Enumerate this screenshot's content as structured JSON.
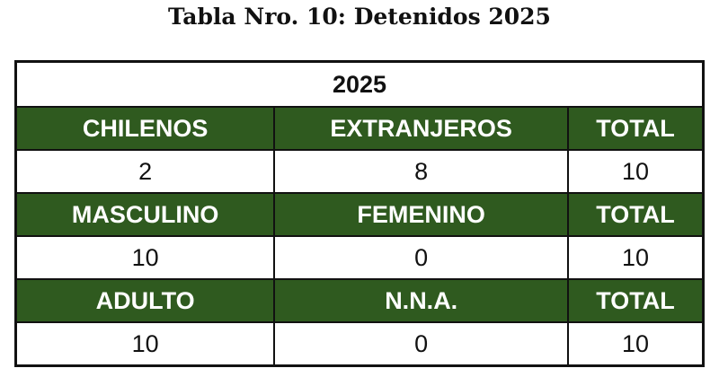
{
  "title": "Tabla Nro. 10: Detenidos 2025",
  "year": "2025",
  "header_color": "#2f5a1f",
  "sections": [
    {
      "headers": [
        "CHILENOS",
        "EXTRANJEROS",
        "TOTAL"
      ],
      "values": [
        "2",
        "8",
        "10"
      ]
    },
    {
      "headers": [
        "MASCULINO",
        "FEMENINO",
        "TOTAL"
      ],
      "values": [
        "10",
        "0",
        "10"
      ]
    },
    {
      "headers": [
        "ADULTO",
        "N.N.A.",
        "TOTAL"
      ],
      "values": [
        "10",
        "0",
        "10"
      ]
    }
  ]
}
